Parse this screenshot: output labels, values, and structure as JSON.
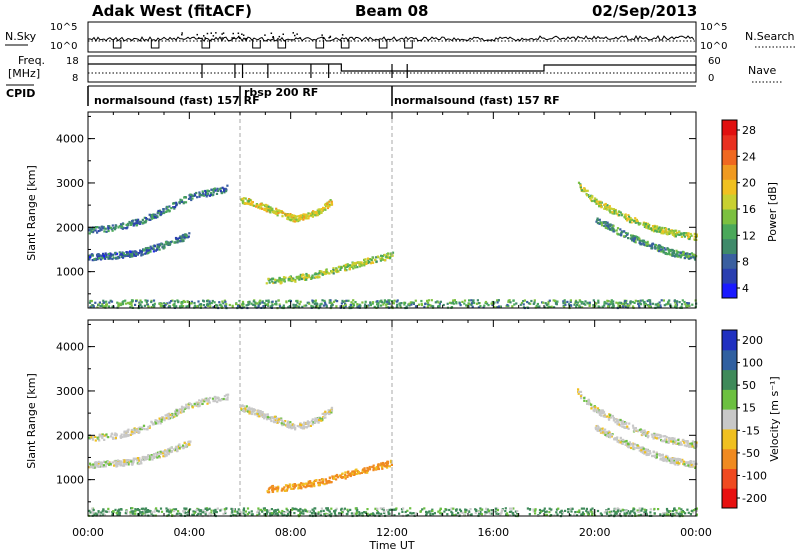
{
  "header": {
    "station": "Adak West (fitACF)",
    "beam": "Beam 08",
    "date": "02/Sep/2013"
  },
  "top_panels": {
    "nsky_label": "N.Sky",
    "nsky_ticks": [
      "10^5",
      "10^0"
    ],
    "nsky_right_ticks": [
      "10^5",
      "10^0"
    ],
    "nsearch_label": "N.Search",
    "freq_label_1": "Freq.",
    "freq_label_2": "[MHz]",
    "freq_ticks": [
      "18",
      "8"
    ],
    "nave_ticks": [
      "60",
      "0"
    ],
    "nave_label": "Nave",
    "cpid_label": "CPID",
    "cpid_segments": [
      {
        "label": "normalsound (fast) 157 RF",
        "start_hour": 0
      },
      {
        "label": "rbsp 200 RF",
        "start_hour": 6
      },
      {
        "label": "normalsound (fast) 157 RF",
        "start_hour": 12
      }
    ]
  },
  "colorbars": {
    "power": {
      "label": "Power [dB]",
      "ticks": [
        "28",
        "24",
        "20",
        "16",
        "12",
        "8",
        "4"
      ],
      "colors": [
        "#1a1aff",
        "#2a3fb0",
        "#3a5fa0",
        "#3f8a6a",
        "#4aa85a",
        "#7cc040",
        "#c8d030",
        "#f0c020",
        "#f09a20",
        "#f06820",
        "#e83020",
        "#e01010"
      ]
    },
    "velocity": {
      "label": "Velocity [m s⁻¹]",
      "ticks": [
        "200",
        "100",
        "50",
        "15",
        "-15",
        "-50",
        "-100",
        "-200"
      ],
      "colors": [
        "#2030c0",
        "#3060a0",
        "#3f8a5a",
        "#6cc040",
        "#c8c8c8",
        "#f0c020",
        "#f08a20",
        "#f04a20",
        "#e81010"
      ]
    }
  },
  "chart_data": [
    {
      "type": "heatmap",
      "name": "power",
      "xlabel": "Time UT",
      "ylabel": "Slant Range [km]",
      "xlim": [
        0,
        24
      ],
      "ylim": [
        180,
        4600
      ],
      "x_ticks": [
        "00:00",
        "04:00",
        "08:00",
        "12:00",
        "16:00",
        "20:00",
        "00:00"
      ],
      "y_ticks": [
        1000,
        2000,
        3000,
        4000
      ],
      "features": [
        {
          "id": "band-early-low",
          "t": [
            0,
            1,
            2,
            3,
            4
          ],
          "range": [
            1350,
            1380,
            1450,
            1620,
            1850
          ],
          "power": 6
        },
        {
          "id": "band-early-high",
          "t": [
            0,
            1,
            2,
            3,
            4,
            5.5
          ],
          "range": [
            1950,
            2000,
            2150,
            2400,
            2700,
            2900
          ],
          "power": 7
        },
        {
          "id": "midday-upper",
          "t": [
            6,
            6.8,
            7.5,
            8.2,
            9,
            9.6
          ],
          "range": [
            2650,
            2500,
            2350,
            2200,
            2350,
            2600
          ],
          "power": 17
        },
        {
          "id": "midday-lower",
          "t": [
            7,
            8,
            9,
            10,
            11,
            12
          ],
          "range": [
            800,
            850,
            950,
            1100,
            1250,
            1400
          ],
          "power": 14
        },
        {
          "id": "evening-upper",
          "t": [
            19.3,
            20,
            21,
            22,
            23,
            24
          ],
          "range": [
            3000,
            2600,
            2300,
            2050,
            1900,
            1800
          ],
          "power": 15
        },
        {
          "id": "evening-lower",
          "t": [
            20,
            21,
            22,
            23,
            24
          ],
          "range": [
            2200,
            1900,
            1650,
            1450,
            1350
          ],
          "power": 9
        },
        {
          "id": "near-ground",
          "t": [
            0,
            12,
            19,
            24
          ],
          "range": [
            300,
            300,
            300,
            300
          ],
          "power": 10
        }
      ]
    },
    {
      "type": "heatmap",
      "name": "velocity",
      "xlabel": "Time UT",
      "ylabel": "Slant Range [km]",
      "xlim": [
        0,
        24
      ],
      "ylim": [
        180,
        4600
      ],
      "x_ticks": [
        "00:00",
        "04:00",
        "08:00",
        "12:00",
        "16:00",
        "20:00",
        "00:00"
      ],
      "y_ticks": [
        1000,
        2000,
        3000,
        4000
      ],
      "features": [
        {
          "id": "band-early-low",
          "t": [
            0,
            1,
            2,
            3,
            4
          ],
          "range": [
            1350,
            1380,
            1450,
            1620,
            1850
          ],
          "velocity": 0
        },
        {
          "id": "band-early-high",
          "t": [
            0,
            1,
            2,
            3,
            4,
            5.5
          ],
          "range": [
            1950,
            2000,
            2150,
            2400,
            2700,
            2900
          ],
          "velocity": 0
        },
        {
          "id": "midday-upper",
          "t": [
            6,
            6.8,
            7.5,
            8.2,
            9,
            9.6
          ],
          "range": [
            2650,
            2500,
            2350,
            2200,
            2350,
            2600
          ],
          "velocity": 0
        },
        {
          "id": "midday-lower",
          "t": [
            7,
            8,
            9,
            10,
            11,
            12
          ],
          "range": [
            800,
            850,
            950,
            1100,
            1250,
            1400
          ],
          "velocity": -60
        },
        {
          "id": "evening-upper",
          "t": [
            19.3,
            20,
            21,
            22,
            23,
            24
          ],
          "range": [
            3000,
            2600,
            2300,
            2050,
            1900,
            1800
          ],
          "velocity": 0
        },
        {
          "id": "evening-lower",
          "t": [
            20,
            21,
            22,
            23,
            24
          ],
          "range": [
            2200,
            1900,
            1650,
            1450,
            1350
          ],
          "velocity": 0
        },
        {
          "id": "near-ground",
          "t": [
            0,
            12,
            19,
            24
          ],
          "range": [
            300,
            300,
            300,
            300
          ],
          "velocity": 20
        }
      ]
    }
  ]
}
